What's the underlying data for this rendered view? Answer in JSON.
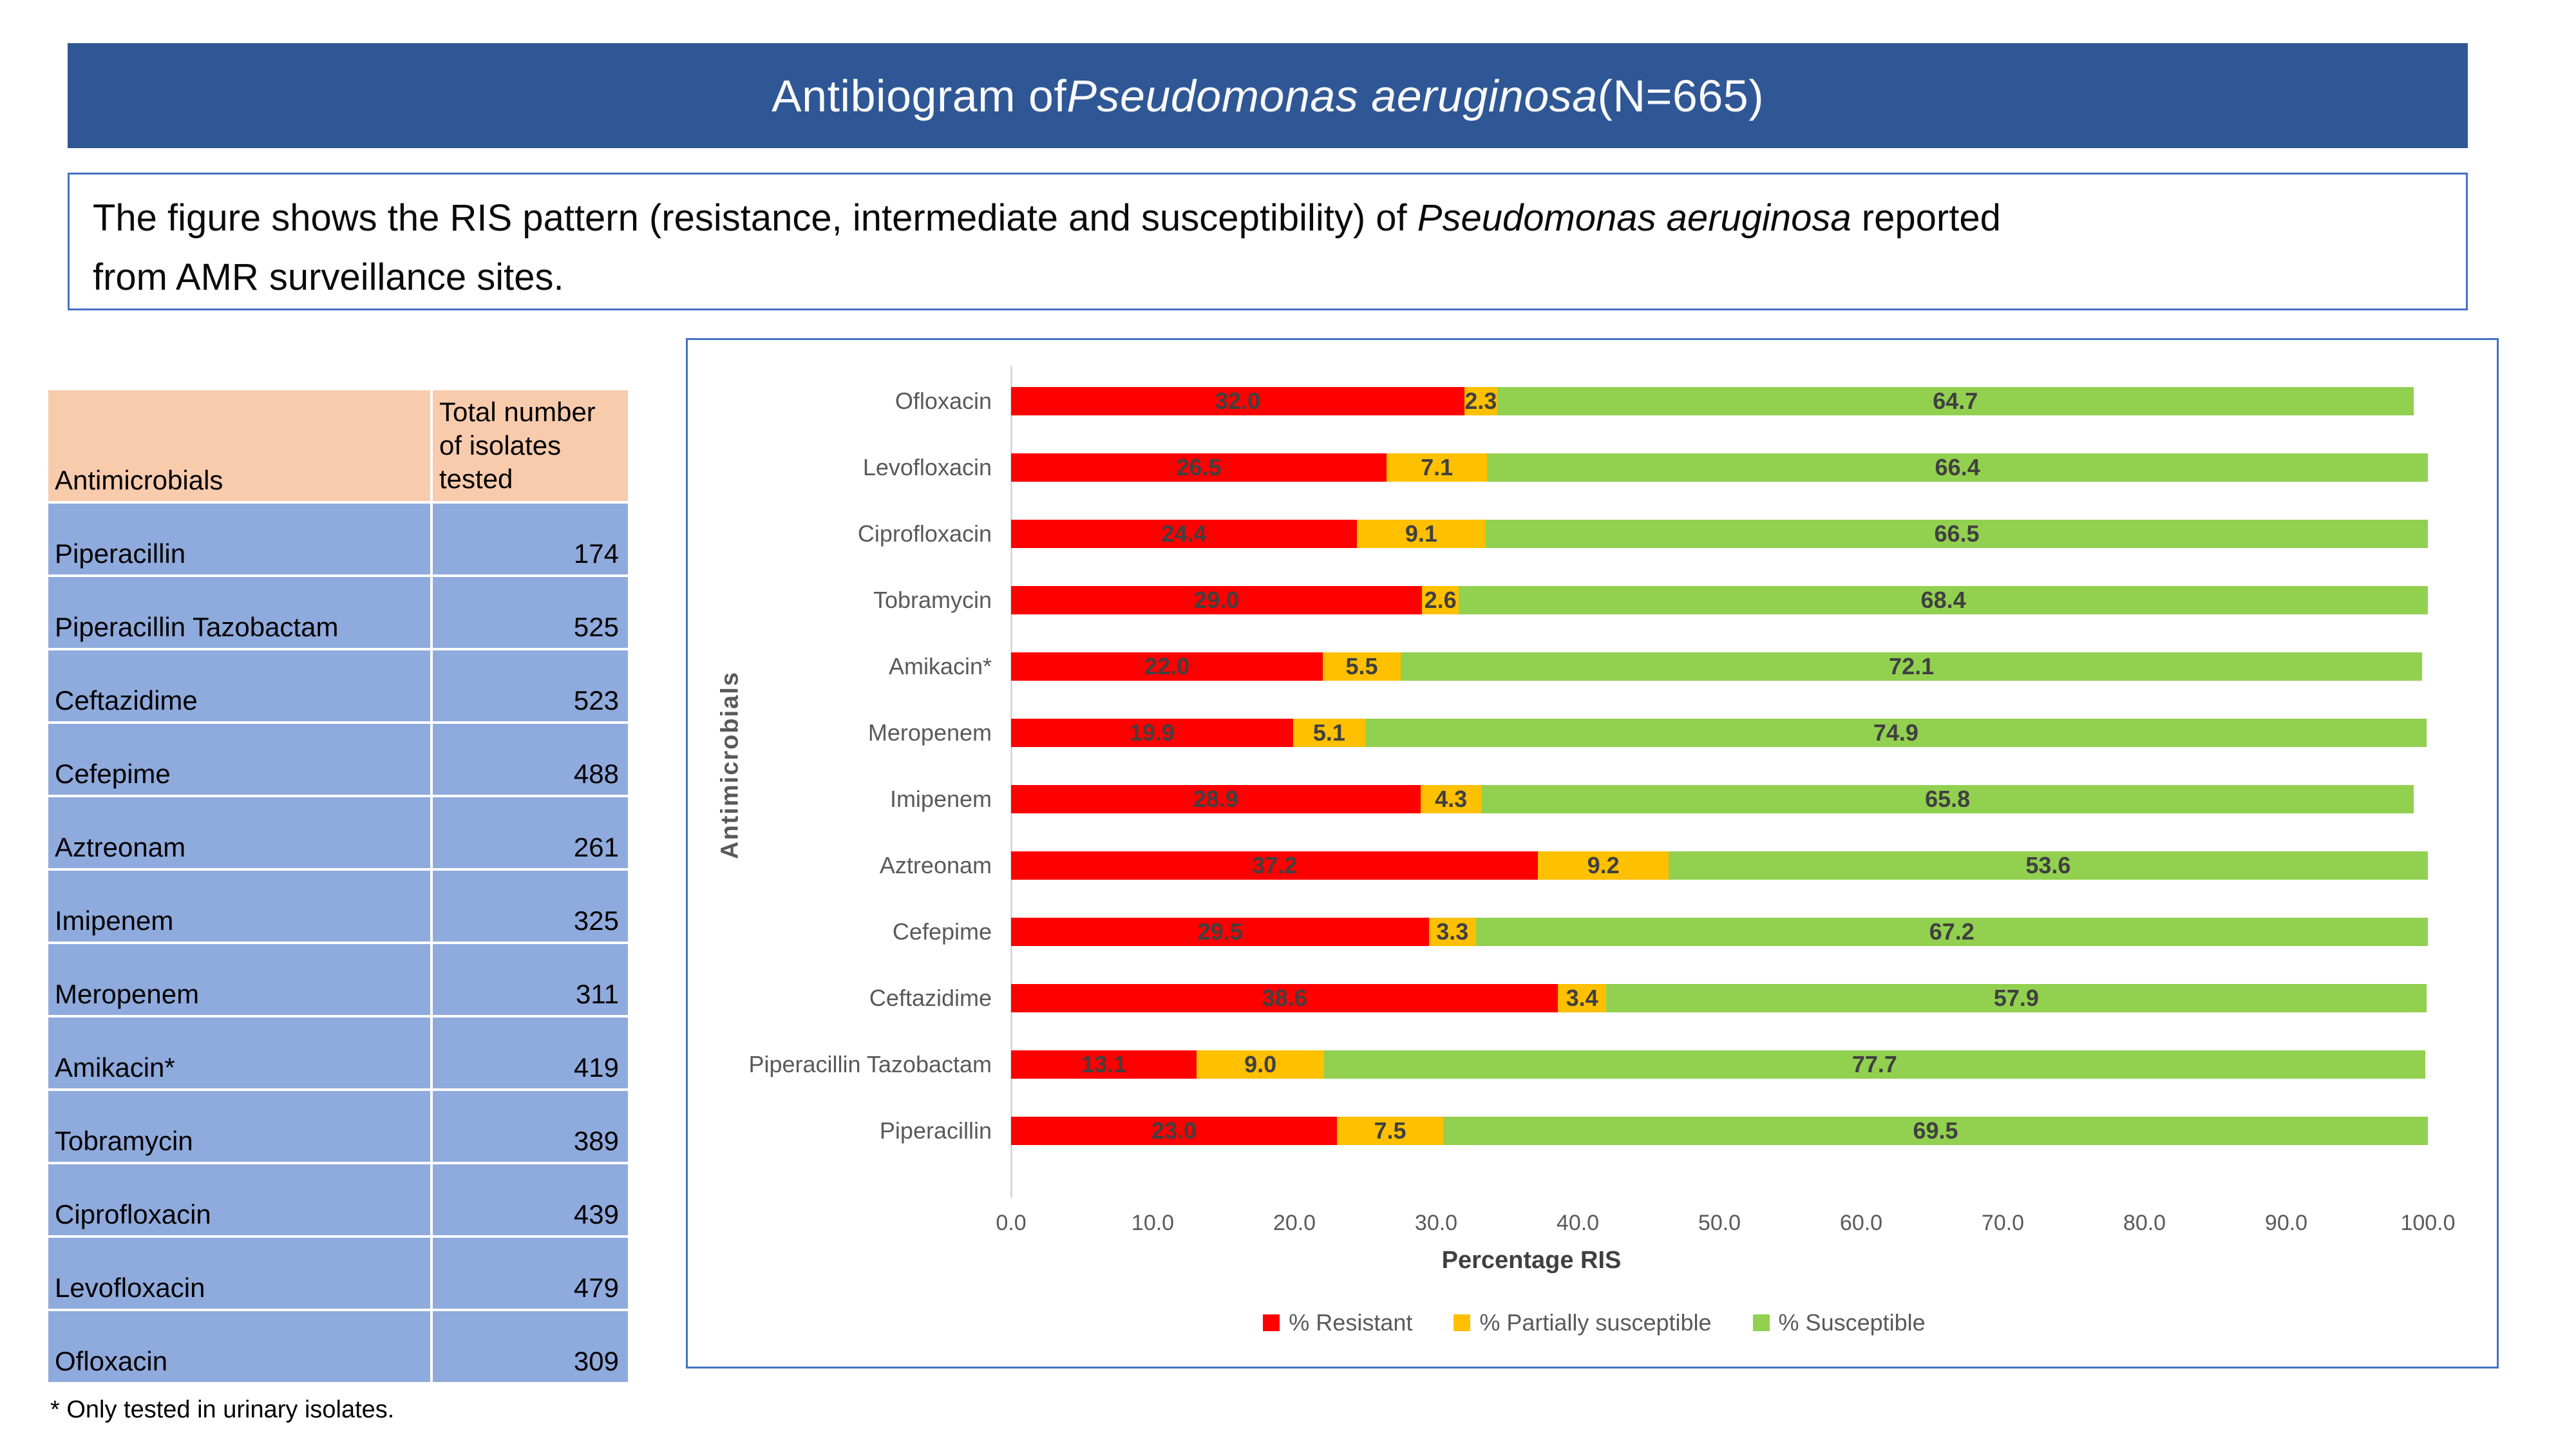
{
  "title": {
    "prefix": "Antibiogram of ",
    "italic": "Pseudomonas aeruginosa",
    "suffix": " (N=665)"
  },
  "description": {
    "prefix": "The figure shows the RIS pattern (resistance, intermediate and susceptibility) of ",
    "italic": "Pseudomonas aeruginosa",
    "suffix": " reported",
    "line2": "from AMR surveillance sites."
  },
  "table": {
    "headers": [
      "Antimicrobials",
      "Total number of isolates tested"
    ],
    "rows": [
      {
        "name": "Piperacillin",
        "count": 174
      },
      {
        "name": "Piperacillin Tazobactam",
        "count": 525
      },
      {
        "name": "Ceftazidime",
        "count": 523
      },
      {
        "name": "Cefepime",
        "count": 488
      },
      {
        "name": "Aztreonam",
        "count": 261
      },
      {
        "name": "Imipenem",
        "count": 325
      },
      {
        "name": "Meropenem",
        "count": 311
      },
      {
        "name": "Amikacin*",
        "count": 419
      },
      {
        "name": "Tobramycin",
        "count": 389
      },
      {
        "name": "Ciprofloxacin",
        "count": 439
      },
      {
        "name": "Levofloxacin",
        "count": 479
      },
      {
        "name": "Ofloxacin",
        "count": 309
      }
    ]
  },
  "footnote": "* Only tested in urinary isolates.",
  "chart_data": {
    "type": "bar",
    "orientation": "horizontal",
    "stacked": true,
    "xlabel": "Percentage RIS",
    "ylabel": "Antimicrobials",
    "xlim": [
      0,
      100
    ],
    "grid": false,
    "legend_position": "bottom",
    "xticks": [
      "0.0",
      "10.0",
      "20.0",
      "30.0",
      "40.0",
      "50.0",
      "60.0",
      "70.0",
      "80.0",
      "90.0",
      "100.0"
    ],
    "categories": [
      "Ofloxacin",
      "Levofloxacin",
      "Ciprofloxacin",
      "Tobramycin",
      "Amikacin*",
      "Meropenem",
      "Imipenem",
      "Aztreonam",
      "Cefepime",
      "Ceftazidime",
      "Piperacillin Tazobactam",
      "Piperacillin"
    ],
    "series": [
      {
        "name": "% Resistant",
        "color": "#FF0000",
        "values": [
          32.0,
          26.5,
          24.4,
          29.0,
          22.0,
          19.9,
          28.9,
          37.2,
          29.5,
          38.6,
          13.1,
          23.0
        ]
      },
      {
        "name": "% Partially susceptible",
        "color": "#FFC000",
        "values": [
          2.3,
          7.1,
          9.1,
          2.6,
          5.5,
          5.1,
          4.3,
          9.2,
          3.3,
          3.4,
          9.0,
          7.5
        ]
      },
      {
        "name": "% Susceptible",
        "color": "#92D050",
        "values": [
          64.7,
          66.4,
          66.5,
          68.4,
          72.1,
          74.9,
          65.8,
          53.6,
          67.2,
          57.9,
          77.7,
          69.5
        ]
      }
    ]
  },
  "colors": {
    "title_bar_bg": "#2F5795",
    "box_border": "#4472C4",
    "table_header_bg": "#F8CBAD",
    "table_row_bg": "#8FAADC",
    "axis_line": "#D9D9D9",
    "axis_text": "#595959",
    "value_label": "#404040",
    "resistant": "#FF0000",
    "partially_susceptible": "#FFC000",
    "susceptible": "#92D050"
  }
}
